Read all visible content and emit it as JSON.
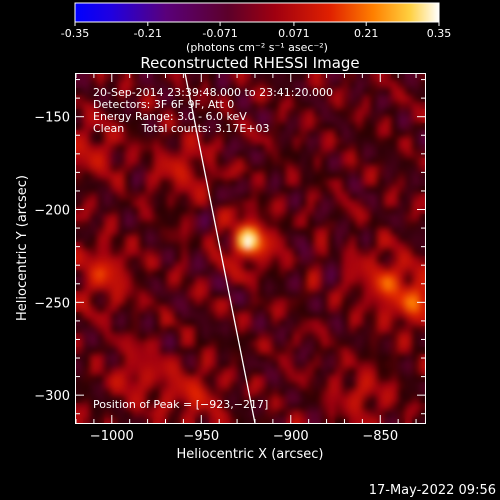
{
  "colorbar": {
    "ticks": [
      "-0.35",
      "-0.21",
      "-0.071",
      "0.071",
      "0.21",
      "0.35"
    ],
    "tick_values": [
      -0.35,
      -0.21,
      -0.071,
      0.071,
      0.21,
      0.35
    ],
    "range": [
      -0.35,
      0.35
    ],
    "units": "(photons cm⁻² s⁻¹ asec⁻²)",
    "colormap": "blue-purple-red-yellow-white"
  },
  "chart_data": {
    "type": "heatmap",
    "title": "Reconstructed RHESSI Image",
    "xlabel": "Heliocentric X (arcsec)",
    "ylabel": "Heliocentric Y (arcsec)",
    "xlim": [
      -1020,
      -825
    ],
    "ylim": [
      -315,
      -127
    ],
    "x_ticks": [
      -1000,
      -950,
      -900,
      -850
    ],
    "y_ticks": [
      -300,
      -250,
      -200,
      -150
    ],
    "x_tick_labels": [
      "−1000",
      "−950",
      "−900",
      "−850"
    ],
    "y_tick_labels": [
      "−300",
      "−250",
      "−200",
      "−150"
    ],
    "annotations": [
      "20-Sep-2014 23:39:48.000 to 23:41:20.000",
      "Detectors: 3F 6F 9F, Att 0",
      "Energy Range: 3.0 - 6.0 keV",
      "Clean     Total counts: 3.17E+03"
    ],
    "peak_label": "Position of Peak = [−923,−217]",
    "peak": [
      -923,
      -217
    ],
    "limb_line": [
      [
        -959,
        -127
      ],
      [
        -920,
        -315
      ]
    ],
    "sources": [
      {
        "x": -923,
        "y": -217,
        "amp": 0.33
      },
      {
        "x": -1005,
        "y": -235,
        "amp": 0.12
      },
      {
        "x": -848,
        "y": -238,
        "amp": 0.12
      },
      {
        "x": -830,
        "y": -250,
        "amp": 0.14
      },
      {
        "x": -960,
        "y": -178,
        "amp": 0.09
      },
      {
        "x": -985,
        "y": -290,
        "amp": 0.08
      },
      {
        "x": -860,
        "y": -300,
        "amp": 0.08
      },
      {
        "x": -955,
        "y": -300,
        "amp": 0.1
      },
      {
        "x": -1010,
        "y": -168,
        "amp": 0.08
      }
    ]
  },
  "timestamp": "17-May-2022 09:56"
}
